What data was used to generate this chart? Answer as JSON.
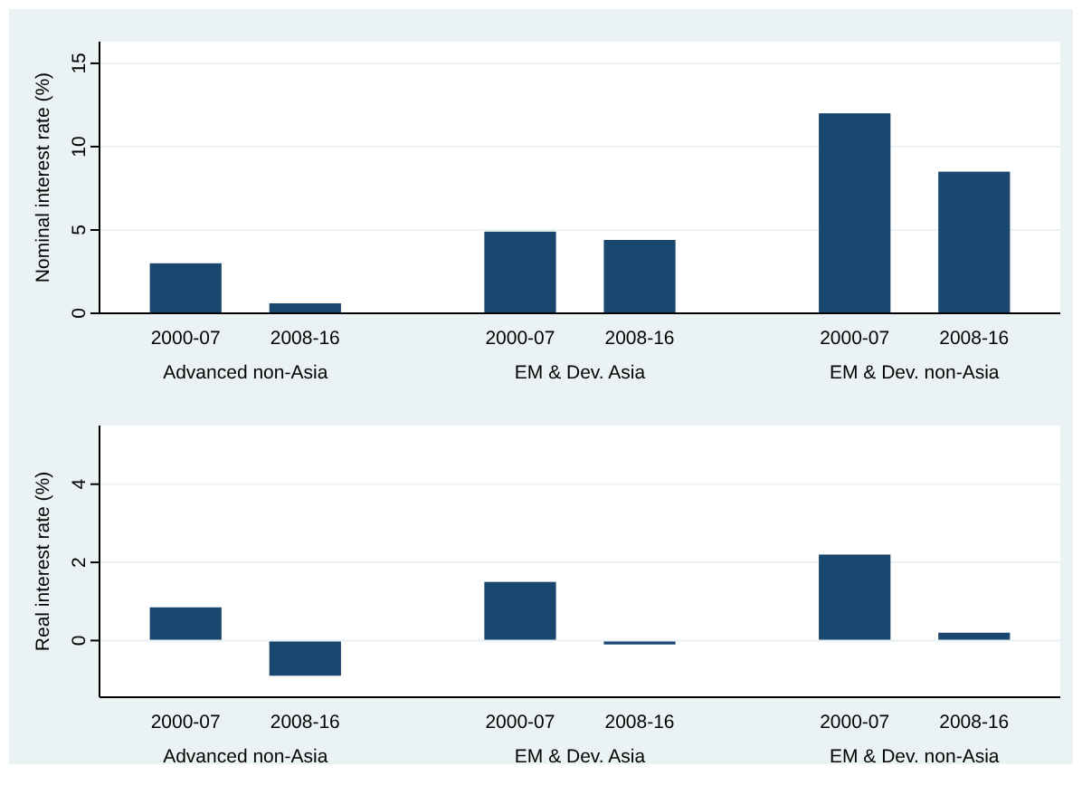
{
  "chart_data": [
    {
      "type": "bar",
      "ylabel": "Nominal interest rate (%)",
      "categories": [
        "2000-07",
        "2008-16",
        "2000-07",
        "2008-16",
        "2000-07",
        "2008-16"
      ],
      "values": [
        3.0,
        0.6,
        4.9,
        4.4,
        12.0,
        8.5
      ],
      "color": "#1a476f",
      "ylim": [
        0,
        16.3
      ],
      "yticks": [
        0,
        5,
        10,
        15
      ],
      "grid": "y",
      "annotations": [
        "Advanced non-Asia",
        "EM & Dev. Asia",
        "EM & Dev. non-Asia"
      ]
    },
    {
      "type": "bar",
      "ylabel": "Real interest rate (%)",
      "categories": [
        "2000-07",
        "2008-16",
        "2000-07",
        "2008-16",
        "2000-07",
        "2008-16"
      ],
      "values": [
        0.85,
        -0.9,
        1.5,
        -0.1,
        2.2,
        0.2
      ],
      "color": "#1a476f",
      "ylim": [
        -1.45,
        5.5
      ],
      "yticks": [
        0,
        2,
        4
      ],
      "grid": "y",
      "annotations": [
        "Advanced non-Asia",
        "EM & Dev. Asia",
        "EM & Dev. non-Asia"
      ]
    }
  ]
}
